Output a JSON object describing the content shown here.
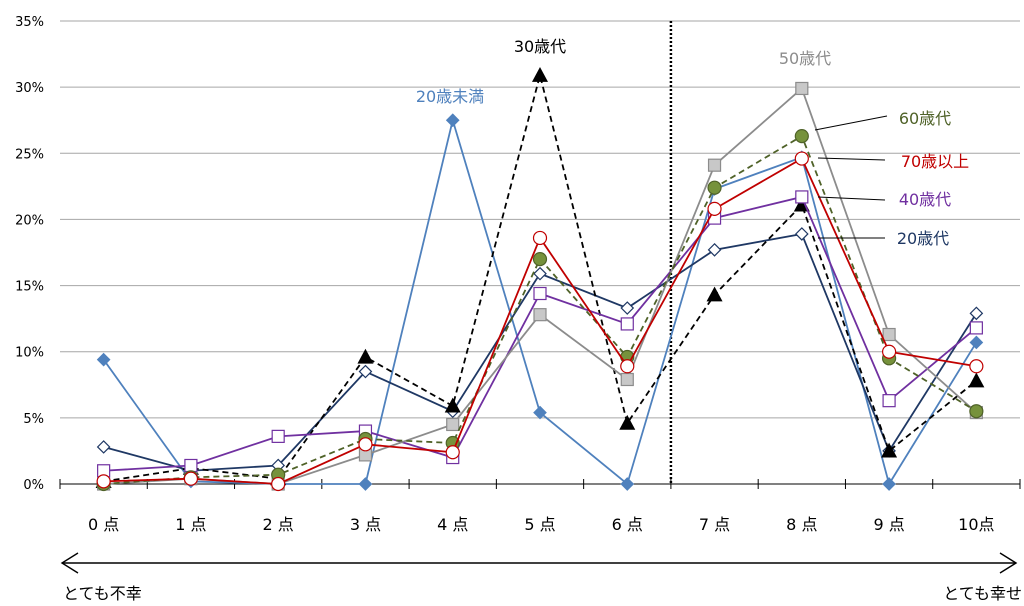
{
  "chart_data": {
    "type": "line",
    "categories": [
      "0点",
      "1点",
      "2点",
      "3点",
      "4点",
      "5点",
      "6点",
      "7点",
      "8点",
      "9点",
      "10点"
    ],
    "ylim": [
      0,
      35
    ],
    "yticks": [
      "0%",
      "5%",
      "10%",
      "15%",
      "20%",
      "25%",
      "30%",
      "35%"
    ],
    "grid": true,
    "divider_after": "6点",
    "arrow_left_label": "とても不幸",
    "arrow_right_label": "とても幸せ",
    "series": [
      {
        "name": "20歳未満",
        "color": "#4f81bd",
        "dash": "none",
        "marker": "diamond",
        "marker_fill": "#4f81bd",
        "values": [
          9.4,
          0.2,
          0.0,
          0.0,
          27.5,
          5.4,
          0.0,
          22.3,
          24.7,
          0.0,
          10.7
        ]
      },
      {
        "name": "20歳代",
        "color": "#1f3864",
        "dash": "none",
        "marker": "diamond",
        "marker_fill": "#ffffff",
        "values": [
          2.8,
          1.0,
          1.4,
          8.5,
          5.5,
          15.9,
          13.3,
          17.7,
          18.9,
          2.5,
          12.9
        ]
      },
      {
        "name": "30歳代",
        "color": "#000000",
        "dash": "6,4",
        "marker": "triangle",
        "marker_fill": "#000000",
        "values": [
          0.2,
          1.2,
          0.4,
          9.6,
          5.9,
          30.9,
          4.6,
          14.3,
          21.1,
          2.5,
          7.8
        ]
      },
      {
        "name": "40歳代",
        "color": "#7030a0",
        "dash": "none",
        "marker": "square",
        "marker_fill": "#ffffff",
        "values": [
          1.0,
          1.4,
          3.6,
          4.0,
          2.0,
          14.4,
          12.1,
          20.1,
          21.7,
          6.3,
          11.8
        ]
      },
      {
        "name": "50歳代",
        "color": "#8c8c8c",
        "dash": "none",
        "marker": "square",
        "marker_fill": "#c8c8c8",
        "values": [
          0.0,
          0.4,
          0.0,
          2.2,
          4.5,
          12.8,
          7.9,
          24.1,
          29.9,
          11.3,
          5.4
        ]
      },
      {
        "name": "60歳代",
        "color": "#4f6228",
        "dash": "6,4",
        "marker": "circle",
        "marker_fill": "#76923c",
        "values": [
          0.0,
          0.5,
          0.7,
          3.4,
          3.1,
          17.0,
          9.6,
          22.4,
          26.3,
          9.5,
          5.5
        ]
      },
      {
        "name": "70歳以上",
        "color": "#c00000",
        "dash": "none",
        "marker": "circle",
        "marker_fill": "#ffffff",
        "values": [
          0.2,
          0.4,
          0.0,
          3.0,
          2.4,
          18.6,
          8.9,
          20.8,
          24.6,
          10.0,
          8.9
        ]
      }
    ],
    "annotations": {
      "20歳未満": {
        "text": "20歳未満",
        "color": "#4f81bd"
      },
      "30歳代": {
        "text": "30歳代",
        "color": "#000000"
      },
      "50歳代": {
        "text": "50歳代",
        "color": "#8c8c8c"
      },
      "60歳代": {
        "text": "60歳代",
        "color": "#4f6228"
      },
      "70歳以上": {
        "text": "70歳以上",
        "color": "#c00000"
      },
      "40歳代": {
        "text": "40歳代",
        "color": "#7030a0"
      },
      "20歳代": {
        "text": "20歳代",
        "color": "#1f3864"
      }
    }
  }
}
